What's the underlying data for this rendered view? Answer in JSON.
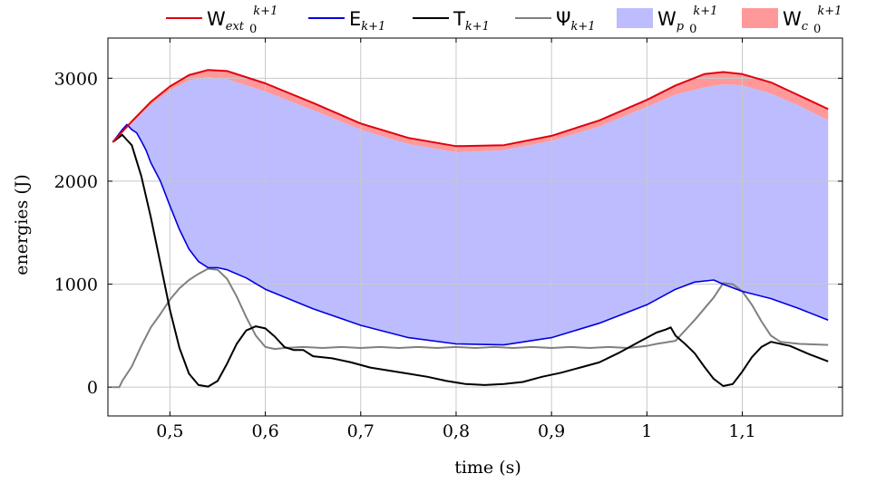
{
  "chart_data": {
    "type": "area",
    "title": "",
    "xlabel": "time (s)",
    "ylabel": "energies (J)",
    "xlim": [
      0.435,
      1.205
    ],
    "ylim": [
      -280,
      3390
    ],
    "xticks": [
      0.5,
      0.6,
      0.7,
      0.8,
      0.9,
      1.0,
      1.1
    ],
    "xtick_labels": [
      "0,5",
      "0,6",
      "0,7",
      "0,8",
      "0,9",
      "1",
      "1,1"
    ],
    "yticks": [
      0,
      1000,
      2000,
      3000
    ],
    "ytick_labels": [
      "0",
      "1000",
      "2000",
      "3000"
    ],
    "grid": true,
    "legend_position": "top",
    "legend": [
      {
        "base": "W",
        "sub": "ext",
        "subsub": "0",
        "sup": "k+1",
        "color": "#e0000f",
        "kind": "line"
      },
      {
        "base": "E",
        "sub": "k+1",
        "color": "#0000dd",
        "kind": "line"
      },
      {
        "base": "T",
        "sub": "k+1",
        "color": "#000000",
        "kind": "line"
      },
      {
        "base": "Ψ",
        "sub": "k+1",
        "color": "#808080",
        "kind": "line"
      },
      {
        "base": "W",
        "sub": "p",
        "subsub": "0",
        "sup": "k+1",
        "color": "#bcbcff",
        "kind": "fill"
      },
      {
        "base": "W",
        "sub": "c",
        "subsub": "0",
        "sup": "k+1",
        "color": "#ff9999",
        "kind": "fill"
      }
    ],
    "series": [
      {
        "name": "Wext",
        "x": [
          0.44,
          0.46,
          0.48,
          0.5,
          0.52,
          0.54,
          0.56,
          0.6,
          0.65,
          0.7,
          0.75,
          0.8,
          0.85,
          0.9,
          0.95,
          1.0,
          1.03,
          1.06,
          1.08,
          1.1,
          1.13,
          1.16,
          1.19
        ],
        "y": [
          2380,
          2580,
          2770,
          2920,
          3030,
          3080,
          3070,
          2950,
          2760,
          2560,
          2420,
          2340,
          2350,
          2440,
          2590,
          2790,
          2930,
          3040,
          3060,
          3040,
          2960,
          2830,
          2700
        ]
      },
      {
        "name": "Wp_upper",
        "x": [
          0.44,
          0.46,
          0.48,
          0.5,
          0.52,
          0.54,
          0.56,
          0.6,
          0.65,
          0.7,
          0.75,
          0.8,
          0.85,
          0.9,
          0.95,
          1.0,
          1.03,
          1.06,
          1.08,
          1.1,
          1.13,
          1.16,
          1.19
        ],
        "y": [
          2380,
          2560,
          2740,
          2880,
          2980,
          3010,
          2990,
          2870,
          2690,
          2500,
          2360,
          2280,
          2300,
          2390,
          2530,
          2720,
          2840,
          2910,
          2940,
          2930,
          2850,
          2730,
          2590
        ]
      },
      {
        "name": "Ek+1",
        "x": [
          0.44,
          0.45,
          0.455,
          0.46,
          0.465,
          0.47,
          0.475,
          0.48,
          0.49,
          0.5,
          0.51,
          0.52,
          0.53,
          0.54,
          0.55,
          0.56,
          0.58,
          0.6,
          0.65,
          0.7,
          0.75,
          0.8,
          0.85,
          0.9,
          0.95,
          1.0,
          1.03,
          1.05,
          1.07,
          1.08,
          1.1,
          1.13,
          1.16,
          1.19
        ],
        "y": [
          2380,
          2500,
          2550,
          2500,
          2470,
          2390,
          2300,
          2180,
          2000,
          1760,
          1530,
          1340,
          1220,
          1160,
          1160,
          1140,
          1060,
          950,
          760,
          600,
          480,
          420,
          410,
          480,
          620,
          800,
          950,
          1020,
          1040,
          1000,
          930,
          860,
          760,
          650
        ]
      },
      {
        "name": "Tk+1",
        "x": [
          0.44,
          0.45,
          0.455,
          0.46,
          0.47,
          0.48,
          0.49,
          0.5,
          0.51,
          0.52,
          0.53,
          0.54,
          0.55,
          0.56,
          0.57,
          0.58,
          0.59,
          0.6,
          0.61,
          0.62,
          0.63,
          0.64,
          0.65,
          0.67,
          0.69,
          0.71,
          0.73,
          0.75,
          0.77,
          0.79,
          0.81,
          0.83,
          0.85,
          0.87,
          0.89,
          0.91,
          0.93,
          0.95,
          0.97,
          0.99,
          1.01,
          1.02,
          1.025,
          1.03,
          1.04,
          1.05,
          1.06,
          1.07,
          1.08,
          1.09,
          1.1,
          1.11,
          1.12,
          1.13,
          1.15,
          1.17,
          1.19
        ],
        "y": [
          2380,
          2450,
          2400,
          2350,
          2050,
          1650,
          1200,
          750,
          380,
          130,
          20,
          5,
          60,
          230,
          420,
          550,
          590,
          570,
          490,
          390,
          360,
          360,
          300,
          280,
          240,
          190,
          160,
          130,
          100,
          60,
          30,
          20,
          30,
          50,
          100,
          140,
          190,
          240,
          330,
          430,
          530,
          560,
          580,
          500,
          420,
          330,
          200,
          80,
          10,
          30,
          150,
          290,
          390,
          440,
          400,
          320,
          250
        ]
      },
      {
        "name": "Ψk+1",
        "x": [
          0.44,
          0.447,
          0.45,
          0.46,
          0.47,
          0.48,
          0.49,
          0.5,
          0.51,
          0.52,
          0.53,
          0.54,
          0.55,
          0.56,
          0.57,
          0.58,
          0.59,
          0.6,
          0.61,
          0.62,
          0.64,
          0.66,
          0.68,
          0.7,
          0.72,
          0.74,
          0.76,
          0.78,
          0.8,
          0.82,
          0.84,
          0.86,
          0.88,
          0.9,
          0.92,
          0.94,
          0.96,
          0.98,
          1.0,
          1.01,
          1.03,
          1.05,
          1.07,
          1.08,
          1.09,
          1.1,
          1.11,
          1.12,
          1.13,
          1.14,
          1.16,
          1.19
        ],
        "y": [
          0,
          0,
          60,
          200,
          400,
          580,
          710,
          850,
          960,
          1040,
          1100,
          1150,
          1140,
          1050,
          880,
          680,
          500,
          390,
          370,
          380,
          390,
          380,
          390,
          380,
          390,
          380,
          390,
          380,
          390,
          380,
          390,
          380,
          390,
          380,
          390,
          380,
          390,
          380,
          400,
          420,
          450,
          650,
          870,
          1010,
          1000,
          930,
          800,
          640,
          500,
          440,
          420,
          410
        ]
      }
    ]
  }
}
